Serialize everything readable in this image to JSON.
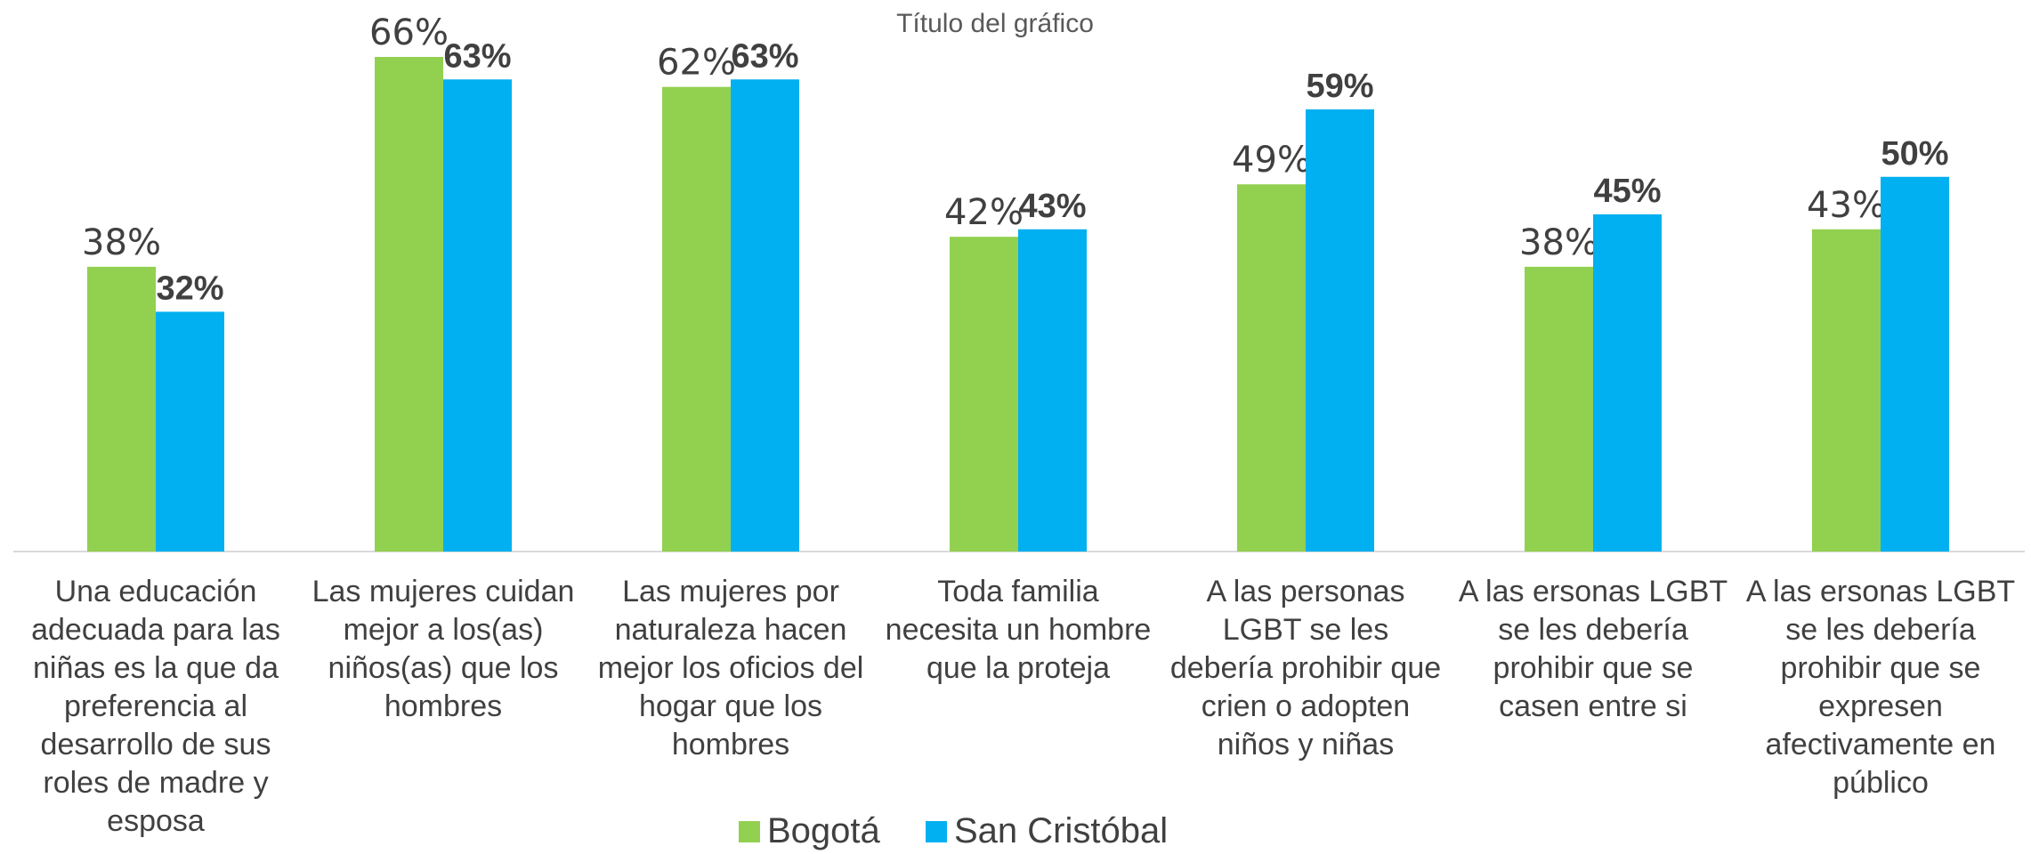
{
  "chart_data": {
    "type": "bar",
    "title": "Título del gráfico",
    "categories": [
      "Una educación adecuada para las niñas es la que da preferencia al desarrollo de sus roles de madre y esposa",
      "Las mujeres cuidan mejor a los(as) niños(as) que los hombres",
      "Las mujeres por naturaleza hacen mejor los oficios del hogar que los hombres",
      "Toda familia necesita un hombre que la proteja",
      "A las personas LGBT se les debería prohibir que crien o adopten niños y niñas",
      "A las ersonas LGBT se les debería prohibir que se casen entre si",
      "A las ersonas LGBT se les debería prohibir que se expresen afectivamente en público"
    ],
    "series": [
      {
        "name": "Bogotá",
        "color": "#92d050",
        "values": [
          38,
          66,
          62,
          42,
          49,
          38,
          43
        ],
        "value_labels": [
          "38%",
          "66%",
          "62%",
          "42%",
          "49%",
          "38%",
          "43%"
        ]
      },
      {
        "name": "San Cristóbal",
        "color": "#00b0f0",
        "values": [
          32,
          63,
          63,
          43,
          59,
          45,
          50
        ],
        "value_labels": [
          "32%",
          "63%",
          "63%",
          "43%",
          "59%",
          "45%",
          "50%"
        ]
      }
    ],
    "legend": "bottom"
  }
}
